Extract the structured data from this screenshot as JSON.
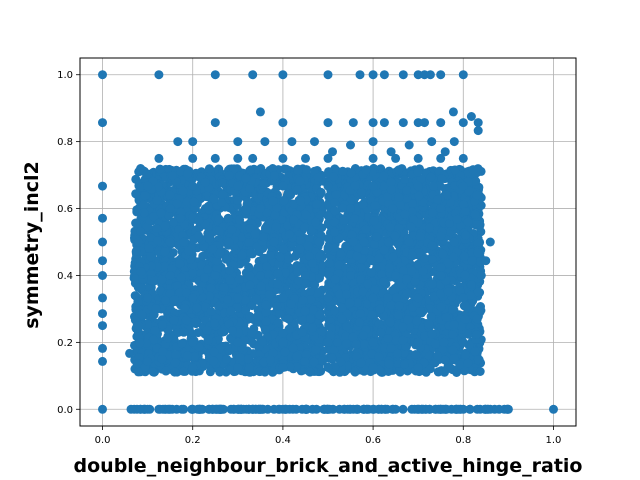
{
  "chart_data": {
    "type": "scatter",
    "title": "",
    "xlabel": "double_neighbour_brick_and_active_hinge_ratio",
    "ylabel": "symmetry_incl2",
    "xlim": [
      -0.05,
      1.05
    ],
    "ylim": [
      -0.05,
      1.05
    ],
    "xticks": [
      "0.0",
      "0.2",
      "0.4",
      "0.6",
      "0.8",
      "1.0"
    ],
    "yticks": [
      "0.0",
      "0.2",
      "0.4",
      "0.6",
      "0.8",
      "1.0"
    ],
    "grid": true,
    "marker_color": "#1f77b4",
    "series": [
      {
        "points": [
          [
            0.0,
            1.0
          ],
          [
            0.0,
            0.857
          ],
          [
            0.0,
            0.667
          ],
          [
            0.0,
            0.571
          ],
          [
            0.0,
            0.5
          ],
          [
            0.0,
            0.444
          ],
          [
            0.0,
            0.4
          ],
          [
            0.0,
            0.333
          ],
          [
            0.0,
            0.286
          ],
          [
            0.0,
            0.25
          ],
          [
            0.0,
            0.182
          ],
          [
            0.0,
            0.143
          ],
          [
            0.0,
            0.0
          ],
          [
            0.125,
            1.0
          ],
          [
            0.25,
            1.0
          ],
          [
            0.333,
            1.0
          ],
          [
            0.4,
            1.0
          ],
          [
            0.5,
            1.0
          ],
          [
            0.571,
            1.0
          ],
          [
            0.6,
            1.0
          ],
          [
            0.625,
            1.0
          ],
          [
            0.667,
            1.0
          ],
          [
            0.7,
            1.0
          ],
          [
            0.714,
            1.0
          ],
          [
            0.727,
            1.0
          ],
          [
            0.75,
            1.0
          ],
          [
            0.8,
            1.0
          ],
          [
            0.25,
            0.857
          ],
          [
            0.4,
            0.857
          ],
          [
            0.5,
            0.857
          ],
          [
            0.556,
            0.857
          ],
          [
            0.6,
            0.857
          ],
          [
            0.625,
            0.857
          ],
          [
            0.667,
            0.857
          ],
          [
            0.7,
            0.857
          ],
          [
            0.714,
            0.857
          ],
          [
            0.75,
            0.857
          ],
          [
            0.8,
            0.857
          ],
          [
            0.833,
            0.857
          ],
          [
            0.35,
            0.889
          ],
          [
            0.778,
            0.889
          ],
          [
            0.818,
            0.875
          ],
          [
            0.833,
            0.833
          ],
          [
            0.125,
            0.75
          ],
          [
            0.2,
            0.75
          ],
          [
            0.25,
            0.75
          ],
          [
            0.3,
            0.75
          ],
          [
            0.333,
            0.75
          ],
          [
            0.4,
            0.75
          ],
          [
            0.45,
            0.75
          ],
          [
            0.5,
            0.75
          ],
          [
            0.6,
            0.75
          ],
          [
            0.65,
            0.75
          ],
          [
            0.7,
            0.75
          ],
          [
            0.75,
            0.75
          ],
          [
            0.8,
            0.75
          ],
          [
            0.2,
            0.8
          ],
          [
            0.3,
            0.8
          ],
          [
            0.36,
            0.8
          ],
          [
            0.42,
            0.8
          ],
          [
            0.6,
            0.8
          ],
          [
            0.73,
            0.8
          ],
          [
            0.78,
            0.8
          ],
          [
            0.167,
            0.8
          ],
          [
            0.47,
            0.8
          ],
          [
            0.51,
            0.77
          ],
          [
            0.55,
            0.79
          ],
          [
            0.64,
            0.77
          ],
          [
            0.68,
            0.79
          ],
          [
            0.76,
            0.77
          ],
          [
            0.1,
            0.667
          ],
          [
            0.2,
            0.667
          ],
          [
            0.3,
            0.667
          ],
          [
            0.4,
            0.667
          ],
          [
            0.5,
            0.667
          ],
          [
            0.6,
            0.667
          ],
          [
            0.7,
            0.667
          ],
          [
            0.8,
            0.667
          ],
          [
            0.15,
            0.6
          ],
          [
            0.35,
            0.6
          ],
          [
            0.55,
            0.6
          ],
          [
            0.75,
            0.6
          ],
          [
            0.08,
            0.5
          ],
          [
            0.18,
            0.5
          ],
          [
            0.28,
            0.5
          ],
          [
            0.38,
            0.5
          ],
          [
            0.48,
            0.5
          ],
          [
            0.58,
            0.5
          ],
          [
            0.68,
            0.5
          ],
          [
            0.78,
            0.5
          ],
          [
            0.86,
            0.5
          ],
          [
            0.82,
            0.444
          ],
          [
            0.85,
            0.444
          ],
          [
            0.84,
            0.4
          ],
          [
            0.06,
            0.167
          ],
          [
            0.08,
            0.25
          ],
          [
            0.1,
            0.333
          ],
          [
            0.15,
            0.4
          ],
          [
            0.25,
            0.4
          ],
          [
            0.35,
            0.4
          ],
          [
            0.45,
            0.4
          ],
          [
            0.55,
            0.4
          ],
          [
            0.65,
            0.4
          ],
          [
            0.75,
            0.4
          ],
          [
            0.2,
            0.333
          ],
          [
            0.3,
            0.333
          ],
          [
            0.4,
            0.333
          ],
          [
            0.5,
            0.333
          ],
          [
            0.6,
            0.333
          ],
          [
            0.7,
            0.333
          ],
          [
            0.8,
            0.333
          ],
          [
            0.2,
            0.2
          ],
          [
            0.3,
            0.2
          ],
          [
            0.4,
            0.2
          ],
          [
            0.5,
            0.2
          ],
          [
            0.6,
            0.2
          ],
          [
            0.7,
            0.2
          ],
          [
            0.8,
            0.2
          ],
          [
            0.1,
            0.143
          ],
          [
            0.2,
            0.125
          ],
          [
            0.3,
            0.125
          ],
          [
            0.4,
            0.125
          ],
          [
            0.5,
            0.125
          ],
          [
            0.6,
            0.125
          ],
          [
            0.7,
            0.125
          ],
          [
            0.16,
            0.111
          ],
          [
            0.26,
            0.111
          ],
          [
            0.36,
            0.111
          ],
          [
            0.46,
            0.111
          ],
          [
            0.56,
            0.111
          ],
          [
            0.66,
            0.111
          ],
          [
            0.063,
            0.0
          ],
          [
            0.1,
            0.0
          ],
          [
            0.15,
            0.0
          ],
          [
            0.2,
            0.0
          ],
          [
            0.25,
            0.0
          ],
          [
            0.3,
            0.0
          ],
          [
            0.35,
            0.0
          ],
          [
            0.4,
            0.0
          ],
          [
            0.45,
            0.0
          ],
          [
            0.5,
            0.0
          ],
          [
            0.55,
            0.0
          ],
          [
            0.6,
            0.0
          ],
          [
            0.65,
            0.0
          ],
          [
            0.7,
            0.0
          ],
          [
            0.75,
            0.0
          ],
          [
            0.8,
            0.0
          ],
          [
            0.85,
            0.0
          ],
          [
            0.9,
            0.0
          ],
          [
            1.0,
            0.0
          ]
        ],
        "dense_regions": [
          {
            "x": [
              0.07,
              0.49
            ],
            "y": [
              0.11,
              0.72
            ]
          },
          {
            "x": [
              0.5,
              0.84
            ],
            "y": [
              0.11,
              0.72
            ]
          },
          {
            "x": [
              0.06,
              0.9
            ],
            "y": [
              0.0,
              0.0
            ]
          }
        ]
      }
    ]
  }
}
